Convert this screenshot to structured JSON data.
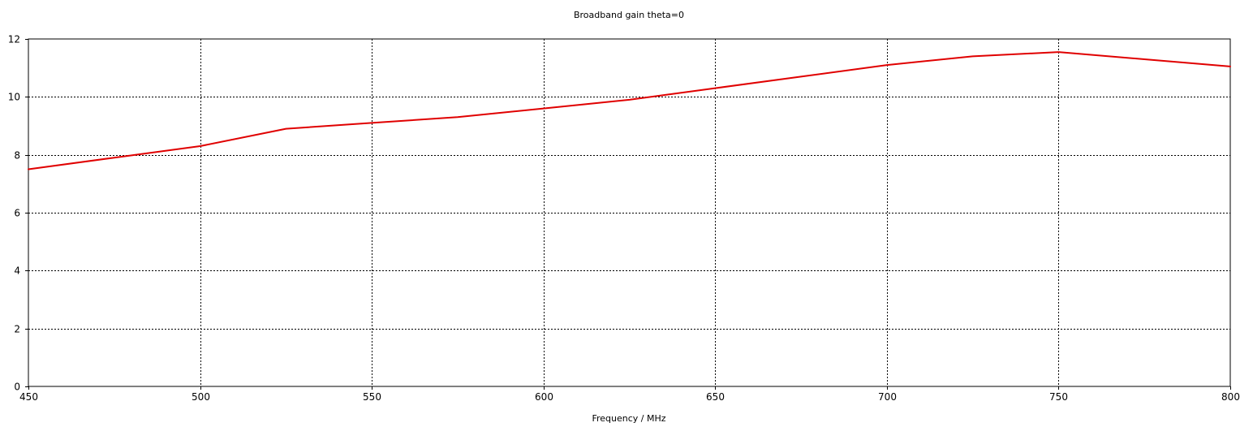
{
  "chart_data": {
    "type": "line",
    "title": "Broadband gain theta=0",
    "xlabel": "Frequency / MHz",
    "ylabel": "",
    "xlim": [
      450,
      800
    ],
    "ylim": [
      0,
      12
    ],
    "xticks": [
      450,
      500,
      550,
      600,
      650,
      700,
      750,
      800
    ],
    "yticks": [
      0,
      2,
      4,
      6,
      8,
      10,
      12
    ],
    "xtick_labels": [
      "450",
      "500",
      "550",
      "600",
      "650",
      "700",
      "750",
      "800"
    ],
    "ytick_labels": [
      "0",
      "2",
      "4",
      "6",
      "8",
      "10",
      "12"
    ],
    "grid": true,
    "series": [
      {
        "color": "#e00000",
        "x": [
          450,
          475,
          500,
          525,
          550,
          575,
          600,
          625,
          650,
          675,
          700,
          725,
          750,
          775,
          800
        ],
        "y": [
          7.5,
          7.9,
          8.3,
          8.9,
          9.1,
          9.3,
          9.6,
          9.9,
          10.3,
          10.7,
          11.1,
          11.4,
          11.55,
          11.3,
          11.05
        ]
      }
    ]
  }
}
